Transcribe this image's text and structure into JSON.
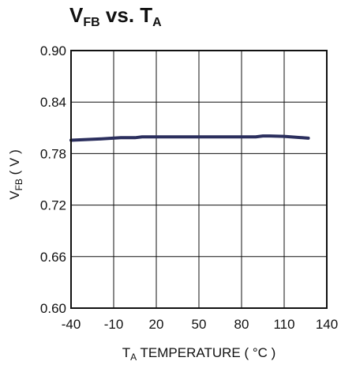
{
  "chart_data": {
    "type": "line",
    "title": {
      "main_1": "V",
      "sub_1": "FB",
      "main_2": " vs. T",
      "sub_2": "A"
    },
    "xlabel": {
      "main_1": "T",
      "sub_1": "A",
      "main_2": " TEMPERATURE ( °C )"
    },
    "ylabel": {
      "main_1": "V",
      "sub_1": "FB",
      "main_2": " ( V )"
    },
    "xlim": [
      -40,
      140
    ],
    "ylim": [
      0.6,
      0.9
    ],
    "x_ticks": [
      "-40",
      "-10",
      "20",
      "50",
      "80",
      "110",
      "140"
    ],
    "y_ticks": [
      "0.90",
      "0.84",
      "0.78",
      "0.72",
      "0.66",
      "0.60"
    ],
    "grid": true,
    "series": [
      {
        "color": "#2b2f5e",
        "x": [
          -40,
          -20,
          -5,
          5,
          10,
          30,
          60,
          90,
          95,
          100,
          110,
          127
        ],
        "y": [
          0.7955,
          0.797,
          0.7985,
          0.7985,
          0.7995,
          0.7995,
          0.7995,
          0.7995,
          0.8005,
          0.8005,
          0.8,
          0.798
        ]
      }
    ]
  }
}
